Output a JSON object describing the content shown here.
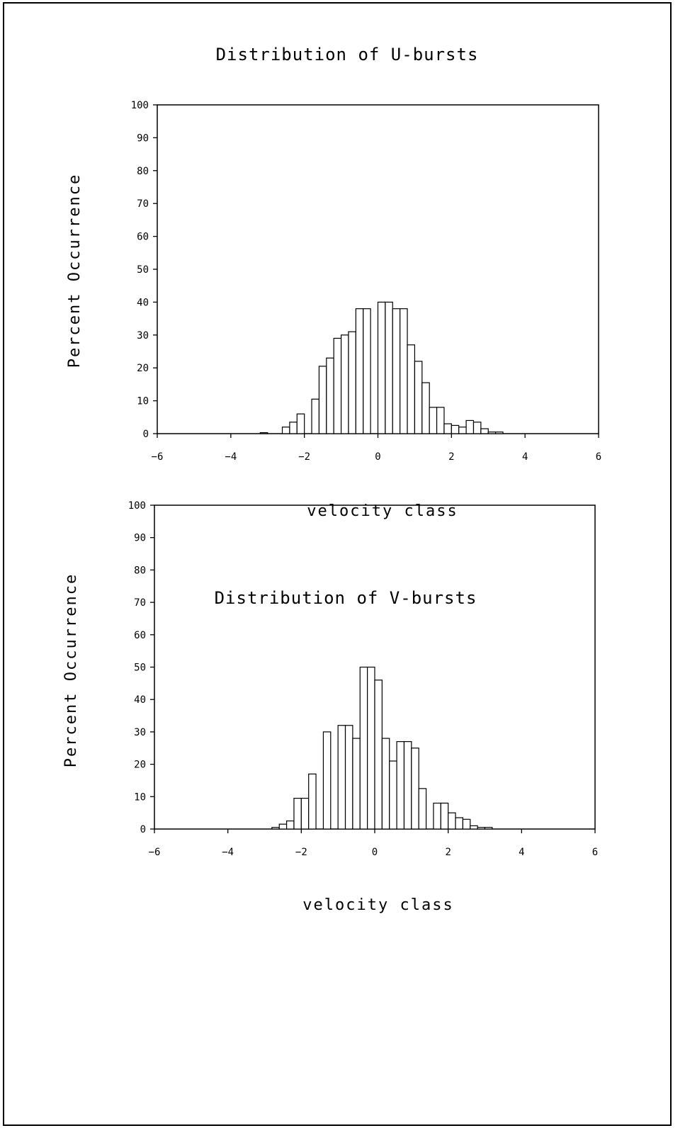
{
  "chart_data": [
    {
      "type": "bar",
      "title": "Distribution of U-bursts",
      "xlabel": "velocity class",
      "ylabel": "Percent Occurrence",
      "xlim": [
        -6,
        6
      ],
      "ylim": [
        0,
        100
      ],
      "xticks": [
        -6,
        -4,
        -2,
        0,
        2,
        4,
        6
      ],
      "yticks": [
        0,
        10,
        20,
        30,
        40,
        50,
        60,
        70,
        80,
        90,
        100
      ],
      "bin_width": 0.2,
      "x": [
        -3.2,
        -2.6,
        -2.4,
        -2.2,
        -1.8,
        -1.6,
        -1.4,
        -1.2,
        -1.0,
        -0.8,
        -0.6,
        -0.4,
        0.0,
        0.2,
        0.4,
        0.6,
        0.8,
        1.0,
        1.2,
        1.4,
        1.6,
        1.8,
        2.0,
        2.2,
        2.4,
        2.6,
        2.8,
        3.0,
        3.2
      ],
      "values": [
        0.3,
        2,
        3.5,
        6,
        10.5,
        20.5,
        23,
        29,
        30,
        31,
        38,
        38,
        40,
        40,
        38,
        38,
        27,
        22,
        15.5,
        8,
        8,
        3,
        2.5,
        2,
        4,
        3.5,
        1.5,
        0.5,
        0.5
      ],
      "grid": false,
      "legend": "none"
    },
    {
      "type": "bar",
      "title": "Distribution of V-bursts",
      "xlabel": "velocity class",
      "ylabel": "Percent Occurrence",
      "xlim": [
        -6,
        6
      ],
      "ylim": [
        0,
        100
      ],
      "xticks": [
        -6,
        -4,
        -2,
        0,
        2,
        4,
        6
      ],
      "yticks": [
        0,
        10,
        20,
        30,
        40,
        50,
        60,
        70,
        80,
        90,
        100
      ],
      "bin_width": 0.2,
      "x": [
        -2.8,
        -2.6,
        -2.4,
        -2.2,
        -2.0,
        -1.8,
        -1.4,
        -1.0,
        -0.8,
        -0.6,
        -0.4,
        -0.2,
        0.0,
        0.2,
        0.4,
        0.6,
        0.8,
        1.0,
        1.2,
        1.6,
        1.8,
        2.0,
        2.2,
        2.4,
        2.6,
        2.8,
        3.0
      ],
      "values": [
        0.5,
        1.5,
        2.5,
        9.5,
        9.5,
        17,
        30,
        32,
        32,
        28,
        50,
        50,
        46,
        28,
        21,
        27,
        27,
        25,
        12.5,
        8,
        8,
        5,
        3.5,
        3,
        1,
        0.5,
        0.5
      ],
      "grid": false,
      "legend": "none"
    }
  ]
}
